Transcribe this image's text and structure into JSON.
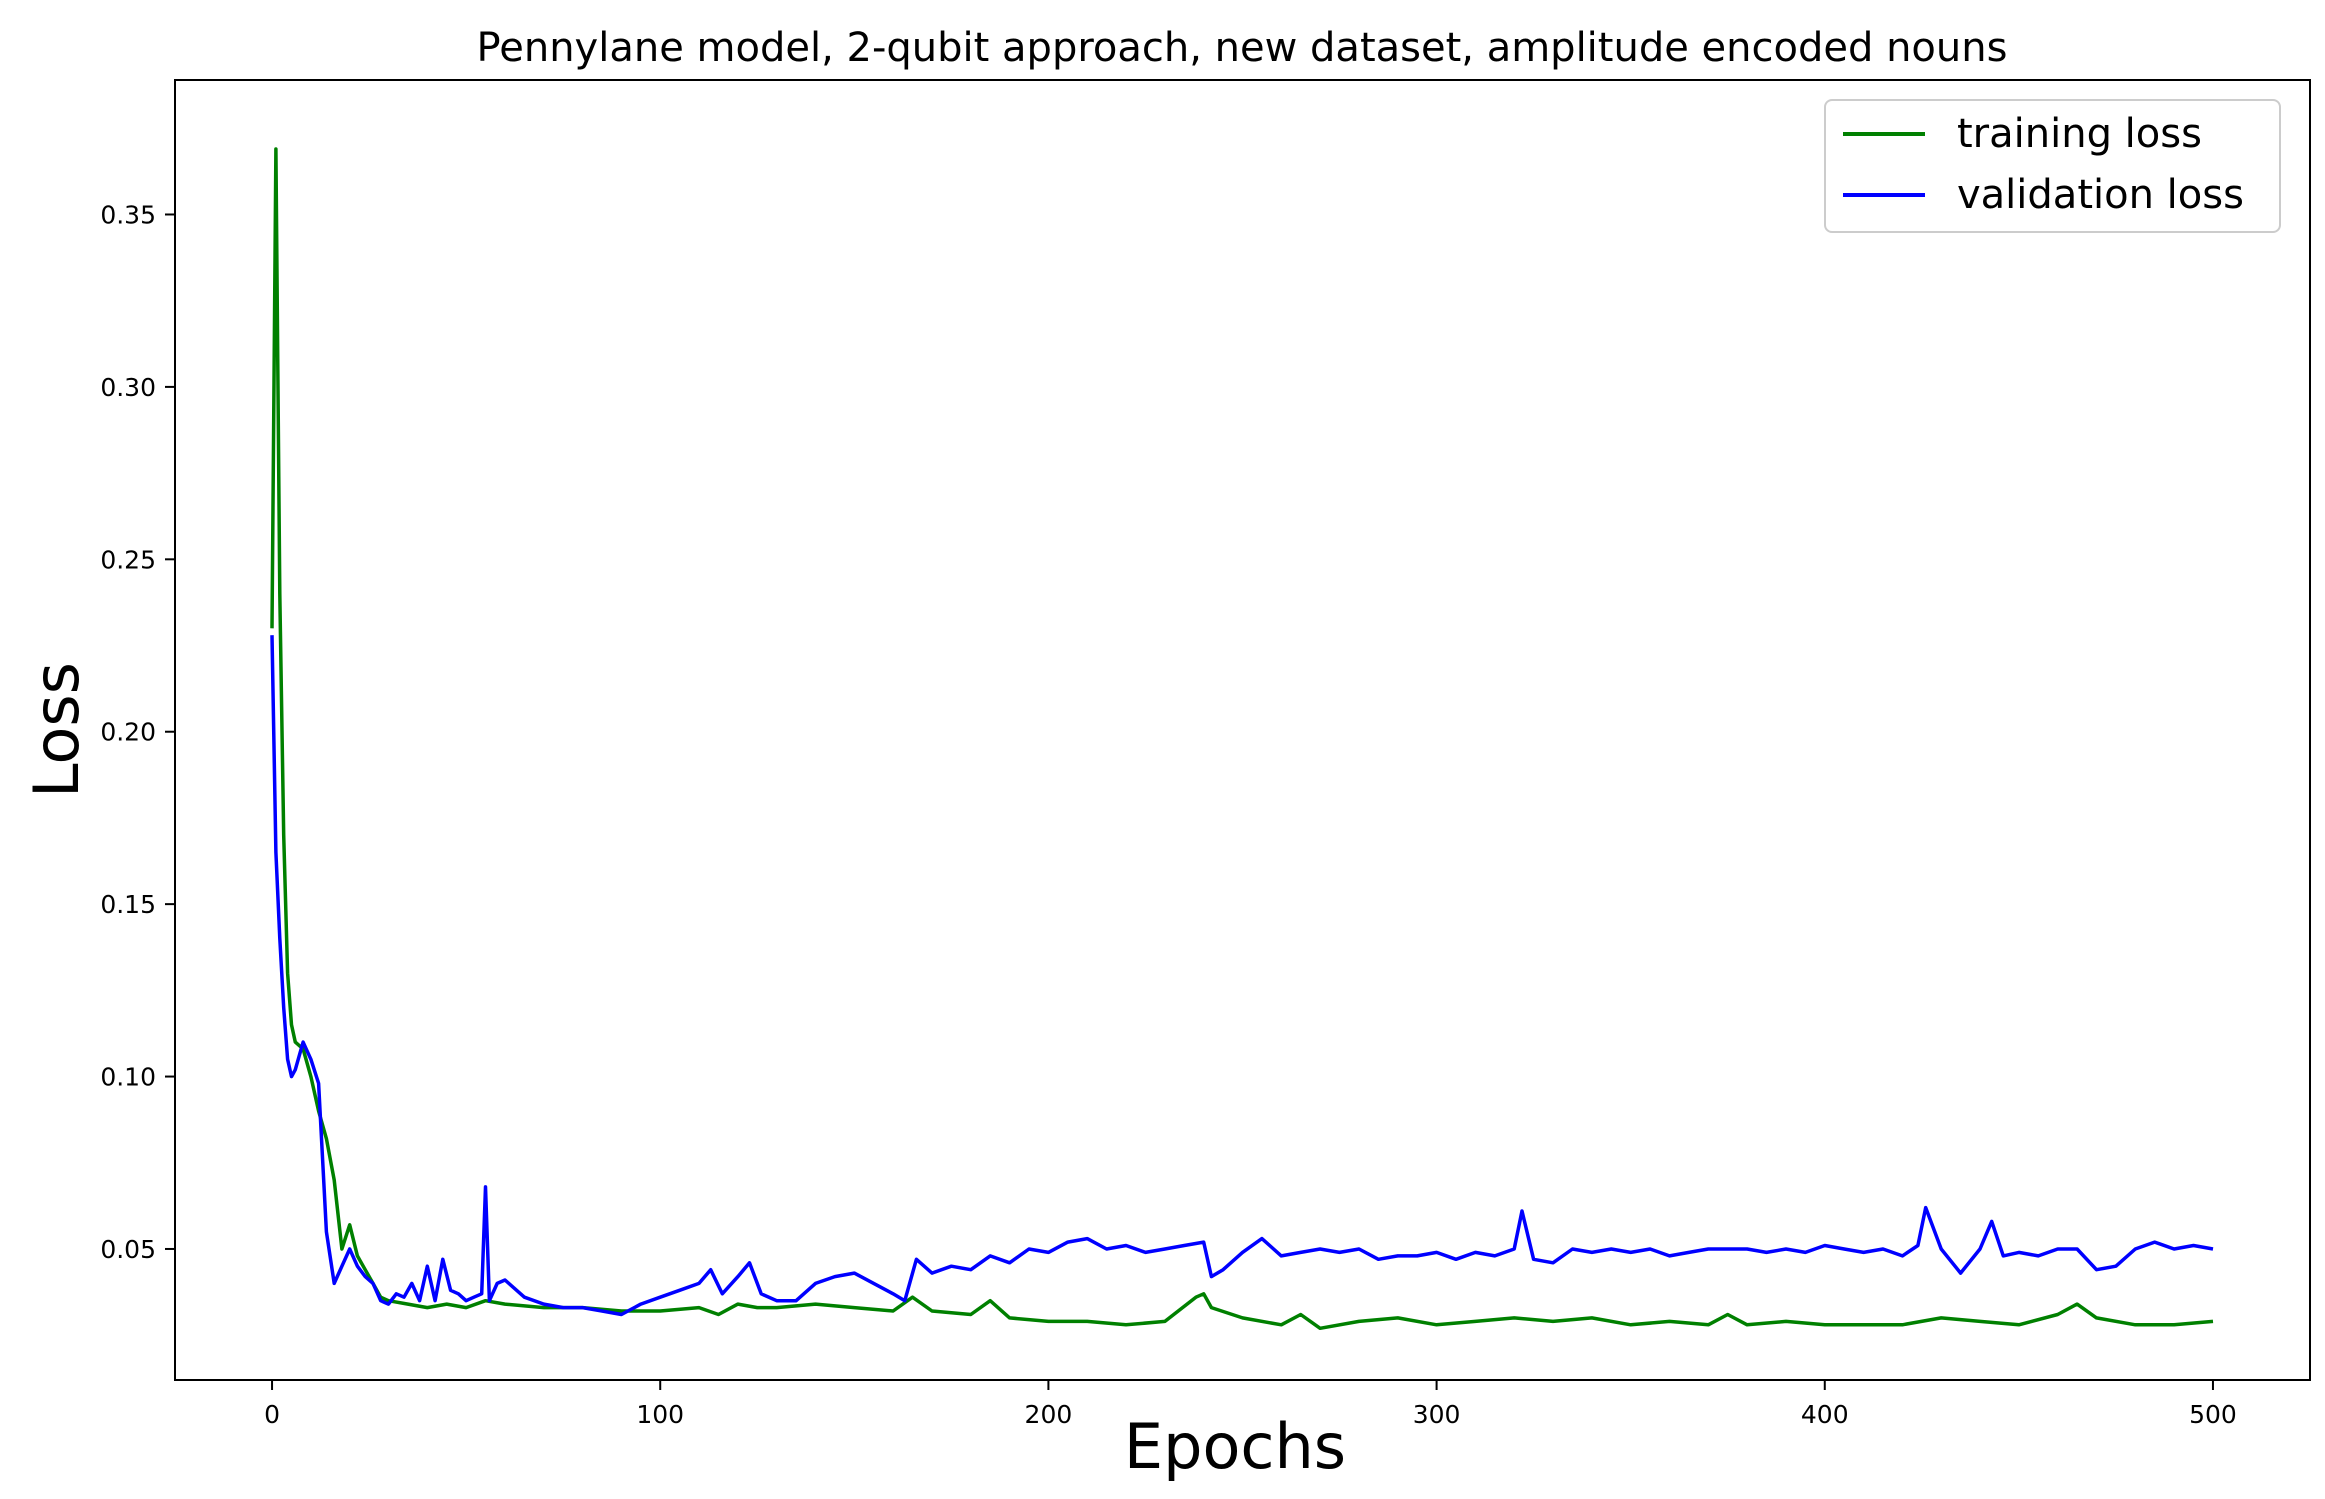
{
  "chart_data": {
    "type": "line",
    "title": "Pennylane model, 2-qubit approach, new dataset, amplitude encoded nouns",
    "xlabel": "Epochs",
    "ylabel": "Loss",
    "xlim": [
      -25,
      525
    ],
    "ylim": [
      0.012,
      0.389
    ],
    "xticks": [
      0,
      100,
      200,
      300,
      400,
      500
    ],
    "xtick_labels": [
      "0",
      "100",
      "200",
      "300",
      "400",
      "500"
    ],
    "yticks": [
      0.05,
      0.1,
      0.15,
      0.2,
      0.25,
      0.3,
      0.35
    ],
    "ytick_labels": [
      "0.05",
      "0.10",
      "0.15",
      "0.20",
      "0.25",
      "0.30",
      "0.35"
    ],
    "grid": false,
    "legend_position": "top-right",
    "series": [
      {
        "name": "training loss",
        "color": "#008000",
        "x": [
          0,
          1,
          2,
          3,
          4,
          5,
          6,
          8,
          10,
          12,
          14,
          16,
          18,
          20,
          22,
          24,
          26,
          28,
          30,
          35,
          40,
          45,
          50,
          55,
          60,
          70,
          80,
          90,
          100,
          110,
          115,
          120,
          125,
          130,
          140,
          150,
          160,
          165,
          170,
          180,
          185,
          190,
          200,
          210,
          220,
          230,
          238,
          240,
          242,
          250,
          260,
          265,
          270,
          280,
          290,
          300,
          310,
          320,
          330,
          340,
          350,
          360,
          370,
          375,
          380,
          390,
          400,
          410,
          420,
          430,
          440,
          450,
          460,
          465,
          470,
          480,
          490,
          500
        ],
        "y": [
          0.23,
          0.369,
          0.24,
          0.17,
          0.13,
          0.115,
          0.11,
          0.108,
          0.1,
          0.09,
          0.082,
          0.07,
          0.05,
          0.057,
          0.048,
          0.044,
          0.04,
          0.036,
          0.035,
          0.034,
          0.033,
          0.034,
          0.033,
          0.035,
          0.034,
          0.033,
          0.033,
          0.032,
          0.032,
          0.033,
          0.031,
          0.034,
          0.033,
          0.033,
          0.034,
          0.033,
          0.032,
          0.036,
          0.032,
          0.031,
          0.035,
          0.03,
          0.029,
          0.029,
          0.028,
          0.029,
          0.036,
          0.037,
          0.033,
          0.03,
          0.028,
          0.031,
          0.027,
          0.029,
          0.03,
          0.028,
          0.029,
          0.03,
          0.029,
          0.03,
          0.028,
          0.029,
          0.028,
          0.031,
          0.028,
          0.029,
          0.028,
          0.028,
          0.028,
          0.03,
          0.029,
          0.028,
          0.031,
          0.034,
          0.03,
          0.028,
          0.028,
          0.029
        ]
      },
      {
        "name": "validation loss",
        "color": "#0000ff",
        "x": [
          0,
          1,
          2,
          3,
          4,
          5,
          6,
          8,
          10,
          12,
          14,
          16,
          18,
          20,
          22,
          24,
          26,
          28,
          30,
          32,
          34,
          36,
          38,
          40,
          42,
          44,
          46,
          48,
          50,
          52,
          54,
          55,
          56,
          58,
          60,
          65,
          70,
          75,
          80,
          85,
          90,
          95,
          100,
          105,
          110,
          113,
          116,
          120,
          123,
          126,
          130,
          135,
          140,
          145,
          150,
          155,
          160,
          163,
          166,
          170,
          175,
          180,
          185,
          190,
          195,
          200,
          205,
          210,
          215,
          220,
          225,
          230,
          235,
          240,
          242,
          245,
          250,
          255,
          260,
          265,
          270,
          275,
          280,
          285,
          290,
          295,
          300,
          305,
          310,
          315,
          320,
          322,
          325,
          330,
          335,
          340,
          345,
          350,
          355,
          360,
          365,
          370,
          375,
          380,
          385,
          390,
          395,
          400,
          405,
          410,
          415,
          420,
          424,
          426,
          430,
          435,
          440,
          443,
          446,
          450,
          455,
          460,
          465,
          470,
          475,
          480,
          485,
          490,
          495,
          500
        ],
        "y": [
          0.228,
          0.165,
          0.14,
          0.12,
          0.105,
          0.1,
          0.102,
          0.11,
          0.105,
          0.098,
          0.055,
          0.04,
          0.045,
          0.05,
          0.045,
          0.042,
          0.04,
          0.035,
          0.034,
          0.037,
          0.036,
          0.04,
          0.035,
          0.045,
          0.035,
          0.047,
          0.038,
          0.037,
          0.035,
          0.036,
          0.037,
          0.068,
          0.035,
          0.04,
          0.041,
          0.036,
          0.034,
          0.033,
          0.033,
          0.032,
          0.031,
          0.034,
          0.036,
          0.038,
          0.04,
          0.044,
          0.037,
          0.042,
          0.046,
          0.037,
          0.035,
          0.035,
          0.04,
          0.042,
          0.043,
          0.04,
          0.037,
          0.035,
          0.047,
          0.043,
          0.045,
          0.044,
          0.048,
          0.046,
          0.05,
          0.049,
          0.052,
          0.053,
          0.05,
          0.051,
          0.049,
          0.05,
          0.051,
          0.052,
          0.042,
          0.044,
          0.049,
          0.053,
          0.048,
          0.049,
          0.05,
          0.049,
          0.05,
          0.047,
          0.048,
          0.048,
          0.049,
          0.047,
          0.049,
          0.048,
          0.05,
          0.061,
          0.047,
          0.046,
          0.05,
          0.049,
          0.05,
          0.049,
          0.05,
          0.048,
          0.049,
          0.05,
          0.05,
          0.05,
          0.049,
          0.05,
          0.049,
          0.051,
          0.05,
          0.049,
          0.05,
          0.048,
          0.051,
          0.062,
          0.05,
          0.043,
          0.05,
          0.058,
          0.048,
          0.049,
          0.048,
          0.05,
          0.05,
          0.044,
          0.045,
          0.05,
          0.052,
          0.05,
          0.051,
          0.05
        ]
      }
    ]
  }
}
